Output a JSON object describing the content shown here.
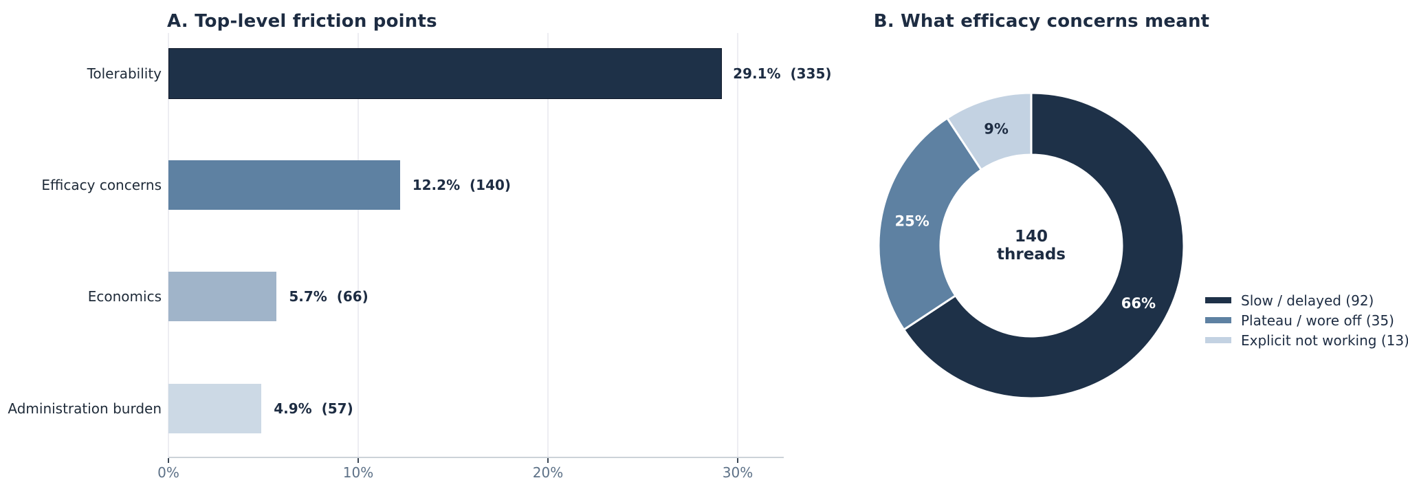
{
  "figure": {
    "background": "#ffffff",
    "palette": {
      "navy": "#1e3148",
      "steel_blue": "#5e81a2",
      "gray_blue": "#a0b4c9",
      "pale_blue": "#ccd9e5",
      "donut_pale_blue": "#c3d2e2",
      "title_text": "#1d2c42",
      "category_text": "#1e2a38",
      "tick_text": "#5d7187",
      "gridline": "#ededf2",
      "axis_line": "#ccd2d8",
      "first_bar_outline": "#0d1626",
      "slice_divider": "#ffffff"
    }
  },
  "chart_data": [
    {
      "type": "bar",
      "orientation": "horizontal",
      "title": "A. Top-level friction points",
      "categories": [
        "Tolerability",
        "Efficacy concerns",
        "Economics",
        "Administration burden"
      ],
      "values": [
        29.1,
        12.2,
        5.7,
        4.9
      ],
      "counts": [
        335,
        140,
        66,
        57
      ],
      "bar_labels": [
        "29.1%  (335)",
        "12.2%  (140)",
        "5.7%  (66)",
        "4.9%  (57)"
      ],
      "bar_colors": [
        "#1e3148",
        "#5e81a2",
        "#a0b4c9",
        "#ccd9e5"
      ],
      "bar_outlines": [
        "#0d1626",
        "none",
        "none",
        "none"
      ],
      "xlabel": "",
      "ylabel": "",
      "x_ticks": [
        0,
        10,
        20,
        30
      ],
      "x_tick_labels": [
        "0%",
        "10%",
        "20%",
        "30%"
      ],
      "xlim": [
        0,
        32.4
      ],
      "grid": "vertical-light"
    },
    {
      "type": "pie",
      "hole": 0.6,
      "title": "B. What efficacy concerns meant",
      "labels": [
        "Slow / delayed",
        "Plateau / wore off",
        "Explicit not working"
      ],
      "values": [
        92,
        35,
        13
      ],
      "slice_labels": [
        "66%",
        "25%",
        "9%"
      ],
      "slice_label_colors": [
        "#ffffff",
        "#ffffff",
        "#1d2c42"
      ],
      "colors": [
        "#1e3148",
        "#5e81a2",
        "#c3d2e2"
      ],
      "start_angle": "12-oclock",
      "direction": "clockwise",
      "center_label": [
        "140",
        "threads"
      ],
      "legend_position": "right",
      "legend": [
        "Slow / delayed (92)",
        "Plateau / wore off (35)",
        "Explicit not working (13)"
      ]
    }
  ]
}
